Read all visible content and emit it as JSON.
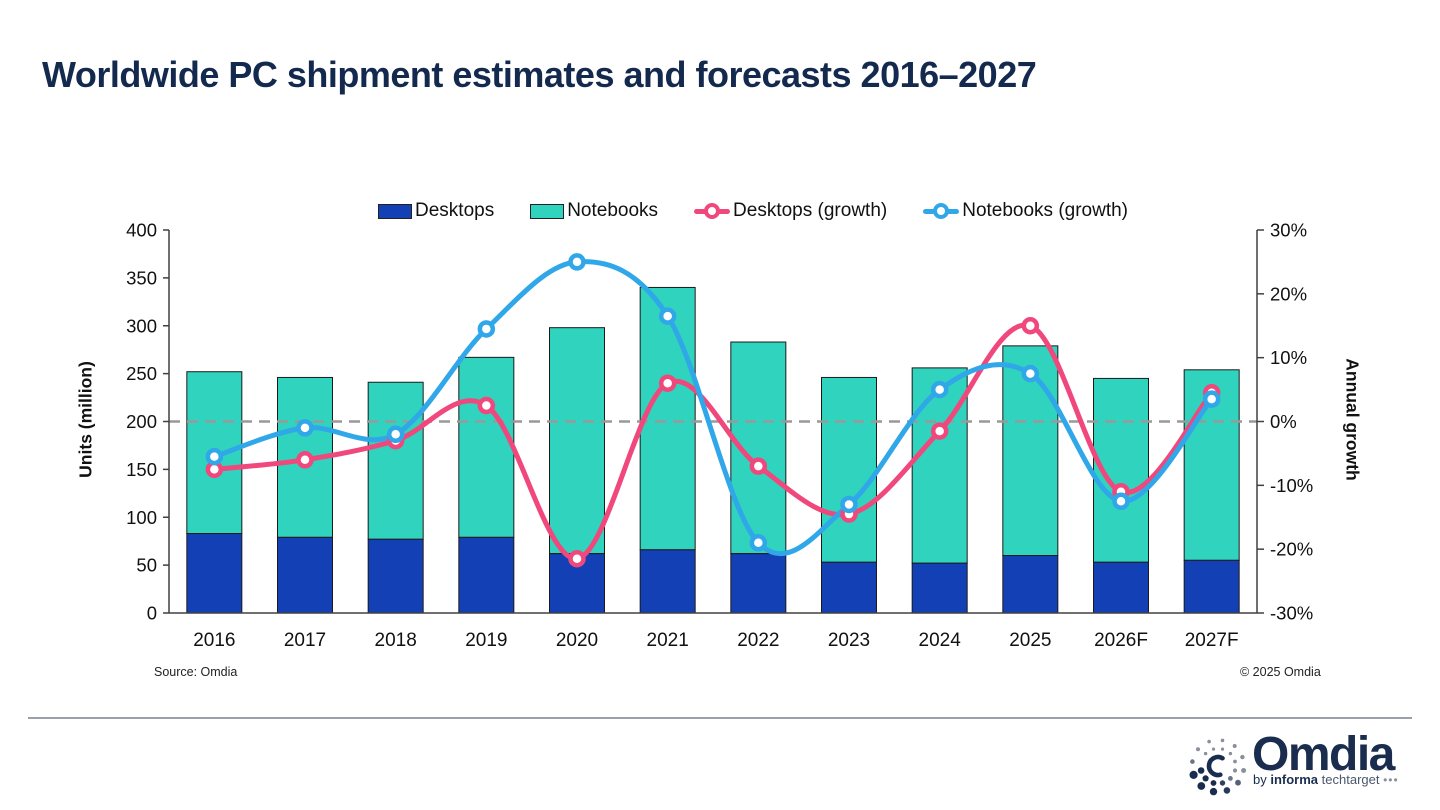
{
  "title": "Worldwide PC shipment estimates and forecasts 2016–2027",
  "footer": {
    "source": "Source: Omdia",
    "copyright": "© 2025 Omdia"
  },
  "logo": {
    "wordmark": "Omdia",
    "byline_by": "by",
    "byline_informa": "informa",
    "byline_techtarget": "techtarget",
    "byline_dots": "•••"
  },
  "colors": {
    "title_navy": "#14294e",
    "desktops_bar": "#1440b5",
    "notebooks_bar": "#30d3bd",
    "desktops_growth_line": "#f0487c",
    "notebooks_growth_line": "#30a7e8",
    "zero_gridline": "#999999",
    "axis": "#404040",
    "bar_outline": "#1b1b1b",
    "logo_navy": "#1b2d4e",
    "logo_gray": "#8a909b"
  },
  "chart_data": {
    "type": "combo: stacked bar + line",
    "categories": [
      "2016",
      "2017",
      "2018",
      "2019",
      "2020",
      "2021",
      "2022",
      "2023",
      "2024",
      "2025",
      "2026F",
      "2027F"
    ],
    "series": [
      {
        "name": "Desktops",
        "type": "bar",
        "stacked": true,
        "axis": "left",
        "color": "#1440b5",
        "values": [
          83,
          79,
          77,
          79,
          62,
          66,
          62,
          53,
          52,
          60,
          53,
          55
        ]
      },
      {
        "name": "Notebooks",
        "type": "bar",
        "stacked": true,
        "axis": "left",
        "color": "#30d3bd",
        "values": [
          169,
          167,
          164,
          188,
          236,
          274,
          221,
          193,
          204,
          219,
          192,
          199
        ]
      },
      {
        "name": "Desktops (growth)",
        "type": "line",
        "axis": "right",
        "color": "#f0487c",
        "values_pct": [
          -7.5,
          -6,
          -3,
          2.5,
          -21.5,
          6,
          -7,
          -14.5,
          -1.5,
          15,
          -11,
          4.5
        ]
      },
      {
        "name": "Notebooks (growth)",
        "type": "line",
        "axis": "right",
        "color": "#30a7e8",
        "values_pct": [
          -5.5,
          -1,
          -2,
          14.5,
          25,
          16.5,
          -19,
          -13,
          5,
          7.5,
          -12.5,
          3.5
        ]
      }
    ],
    "left_axis": {
      "label": "Units (million)",
      "min": 0,
      "max": 400,
      "step": 50,
      "ticks": [
        0,
        50,
        100,
        150,
        200,
        250,
        300,
        350,
        400
      ]
    },
    "right_axis": {
      "label": "Annual growth",
      "min": -30,
      "max": 30,
      "step": 10,
      "ticks": [
        30,
        20,
        10,
        0,
        -10,
        -20,
        -30
      ],
      "tick_labels": [
        "30%",
        "20%",
        "10%",
        "0%",
        "-10%",
        "-20%",
        "-30%"
      ]
    },
    "gridline": {
      "left_value": 200,
      "right_value_pct": 0,
      "style": "dashed"
    },
    "legend_position": "top-center",
    "grid": "off (single dashed zero line only)"
  }
}
